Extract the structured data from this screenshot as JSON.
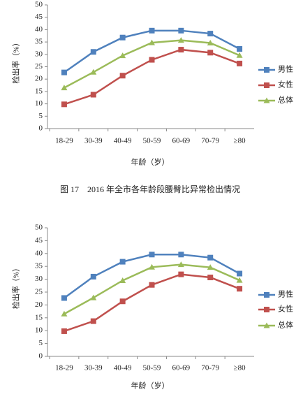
{
  "chart_data": [
    {
      "type": "line",
      "ylabel": "检出率（%）",
      "xlabel": "年龄（岁）",
      "caption": "图 17　2016 年全市各年龄段腰臀比异常检出情况",
      "categories": [
        "18-29",
        "30-39",
        "40-49",
        "50-59",
        "60-69",
        "70-79",
        "≥80"
      ],
      "ylim": [
        0,
        50
      ],
      "yticks": [
        0,
        5,
        10,
        15,
        20,
        25,
        30,
        35,
        40,
        45,
        50
      ],
      "legend": "right",
      "series": [
        {
          "name": "男性",
          "color": "#4f81bd",
          "marker": "square",
          "values": [
            22.7,
            31,
            36.8,
            39.6,
            39.6,
            38.4,
            32.2
          ]
        },
        {
          "name": "女性",
          "color": "#c0504d",
          "marker": "square",
          "values": [
            9.8,
            13.7,
            21.4,
            27.8,
            31.9,
            30.7,
            26.3
          ]
        },
        {
          "name": "总体",
          "color": "#9bbb59",
          "marker": "triangle",
          "values": [
            16.5,
            22.8,
            29.5,
            34.7,
            35.7,
            34.6,
            29.6
          ]
        }
      ]
    },
    {
      "type": "line",
      "ylabel": "检出率（%）",
      "xlabel": "年龄（岁）",
      "categories": [
        "18-29",
        "30-39",
        "40-49",
        "50-59",
        "60-69",
        "70-79",
        "≥80"
      ],
      "ylim": [
        0,
        50
      ],
      "yticks": [
        0,
        5,
        10,
        15,
        20,
        25,
        30,
        35,
        40,
        45,
        50
      ],
      "legend": "right",
      "series": [
        {
          "name": "男性",
          "color": "#4f81bd",
          "marker": "square",
          "values": [
            22.7,
            31,
            36.8,
            39.6,
            39.6,
            38.4,
            32.2
          ]
        },
        {
          "name": "女性",
          "color": "#c0504d",
          "marker": "square",
          "values": [
            9.8,
            13.7,
            21.4,
            27.8,
            31.9,
            30.7,
            26.3
          ]
        },
        {
          "name": "总体",
          "color": "#9bbb59",
          "marker": "triangle",
          "values": [
            16.5,
            22.8,
            29.5,
            34.7,
            35.7,
            34.6,
            29.6
          ]
        }
      ]
    }
  ]
}
